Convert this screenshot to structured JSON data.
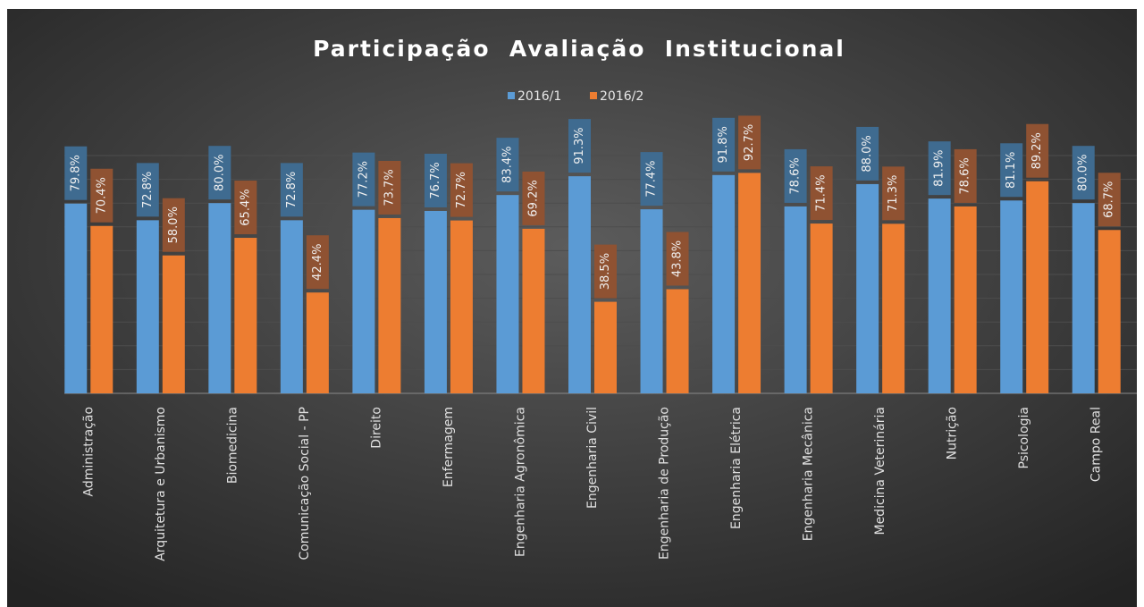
{
  "chart_data": {
    "type": "bar",
    "title": "Participação  Avaliação  Institucional",
    "categories": [
      "Administração",
      "Arquitetura e Urbanismo",
      "Biomedicina",
      "Comunicação Social - PP",
      "Direito",
      "Enfermagem",
      "Engenharia Agronômica",
      "Engenharia Civil",
      "Engenharia de Produção",
      "Engenharia Elétrica",
      "Engenharia Mecânica",
      "Medicina Veterinária",
      "Nutrição",
      "Psicologia",
      "Campo Real"
    ],
    "series": [
      {
        "name": "2016/1",
        "color": "#5b9bd5",
        "label_color": "#3f6b90",
        "values": [
          79.8,
          72.8,
          80.0,
          72.8,
          77.2,
          76.7,
          83.4,
          91.3,
          77.4,
          91.8,
          78.6,
          88.0,
          81.9,
          81.1,
          80.0
        ],
        "value_labels": [
          "79.8%",
          "72.8%",
          "80.0%",
          "72.8%",
          "77.2%",
          "76.7%",
          "83.4%",
          "91.3%",
          "77.4%",
          "91.8%",
          "78.6%",
          "88.0%",
          "81.9%",
          "81.1%",
          "80.0%"
        ]
      },
      {
        "name": "2016/2",
        "color": "#ed7d31",
        "label_color": "#8f5232",
        "values": [
          70.4,
          58.0,
          65.4,
          42.4,
          73.7,
          72.7,
          69.2,
          38.5,
          43.8,
          92.7,
          71.4,
          71.3,
          78.6,
          89.2,
          68.7
        ],
        "value_labels": [
          "70.4%",
          "58.0%",
          "65.4%",
          "42.4%",
          "73.7%",
          "72.7%",
          "69.2%",
          "38.5%",
          "43.8%",
          "92.7%",
          "71.4%",
          "71.3%",
          "78.6%",
          "89.2%",
          "68.7%"
        ]
      }
    ],
    "ylim": [
      0,
      100
    ],
    "yticks": [
      0,
      10,
      20,
      30,
      40,
      50,
      60,
      70,
      80,
      90,
      100
    ],
    "grid": true
  }
}
